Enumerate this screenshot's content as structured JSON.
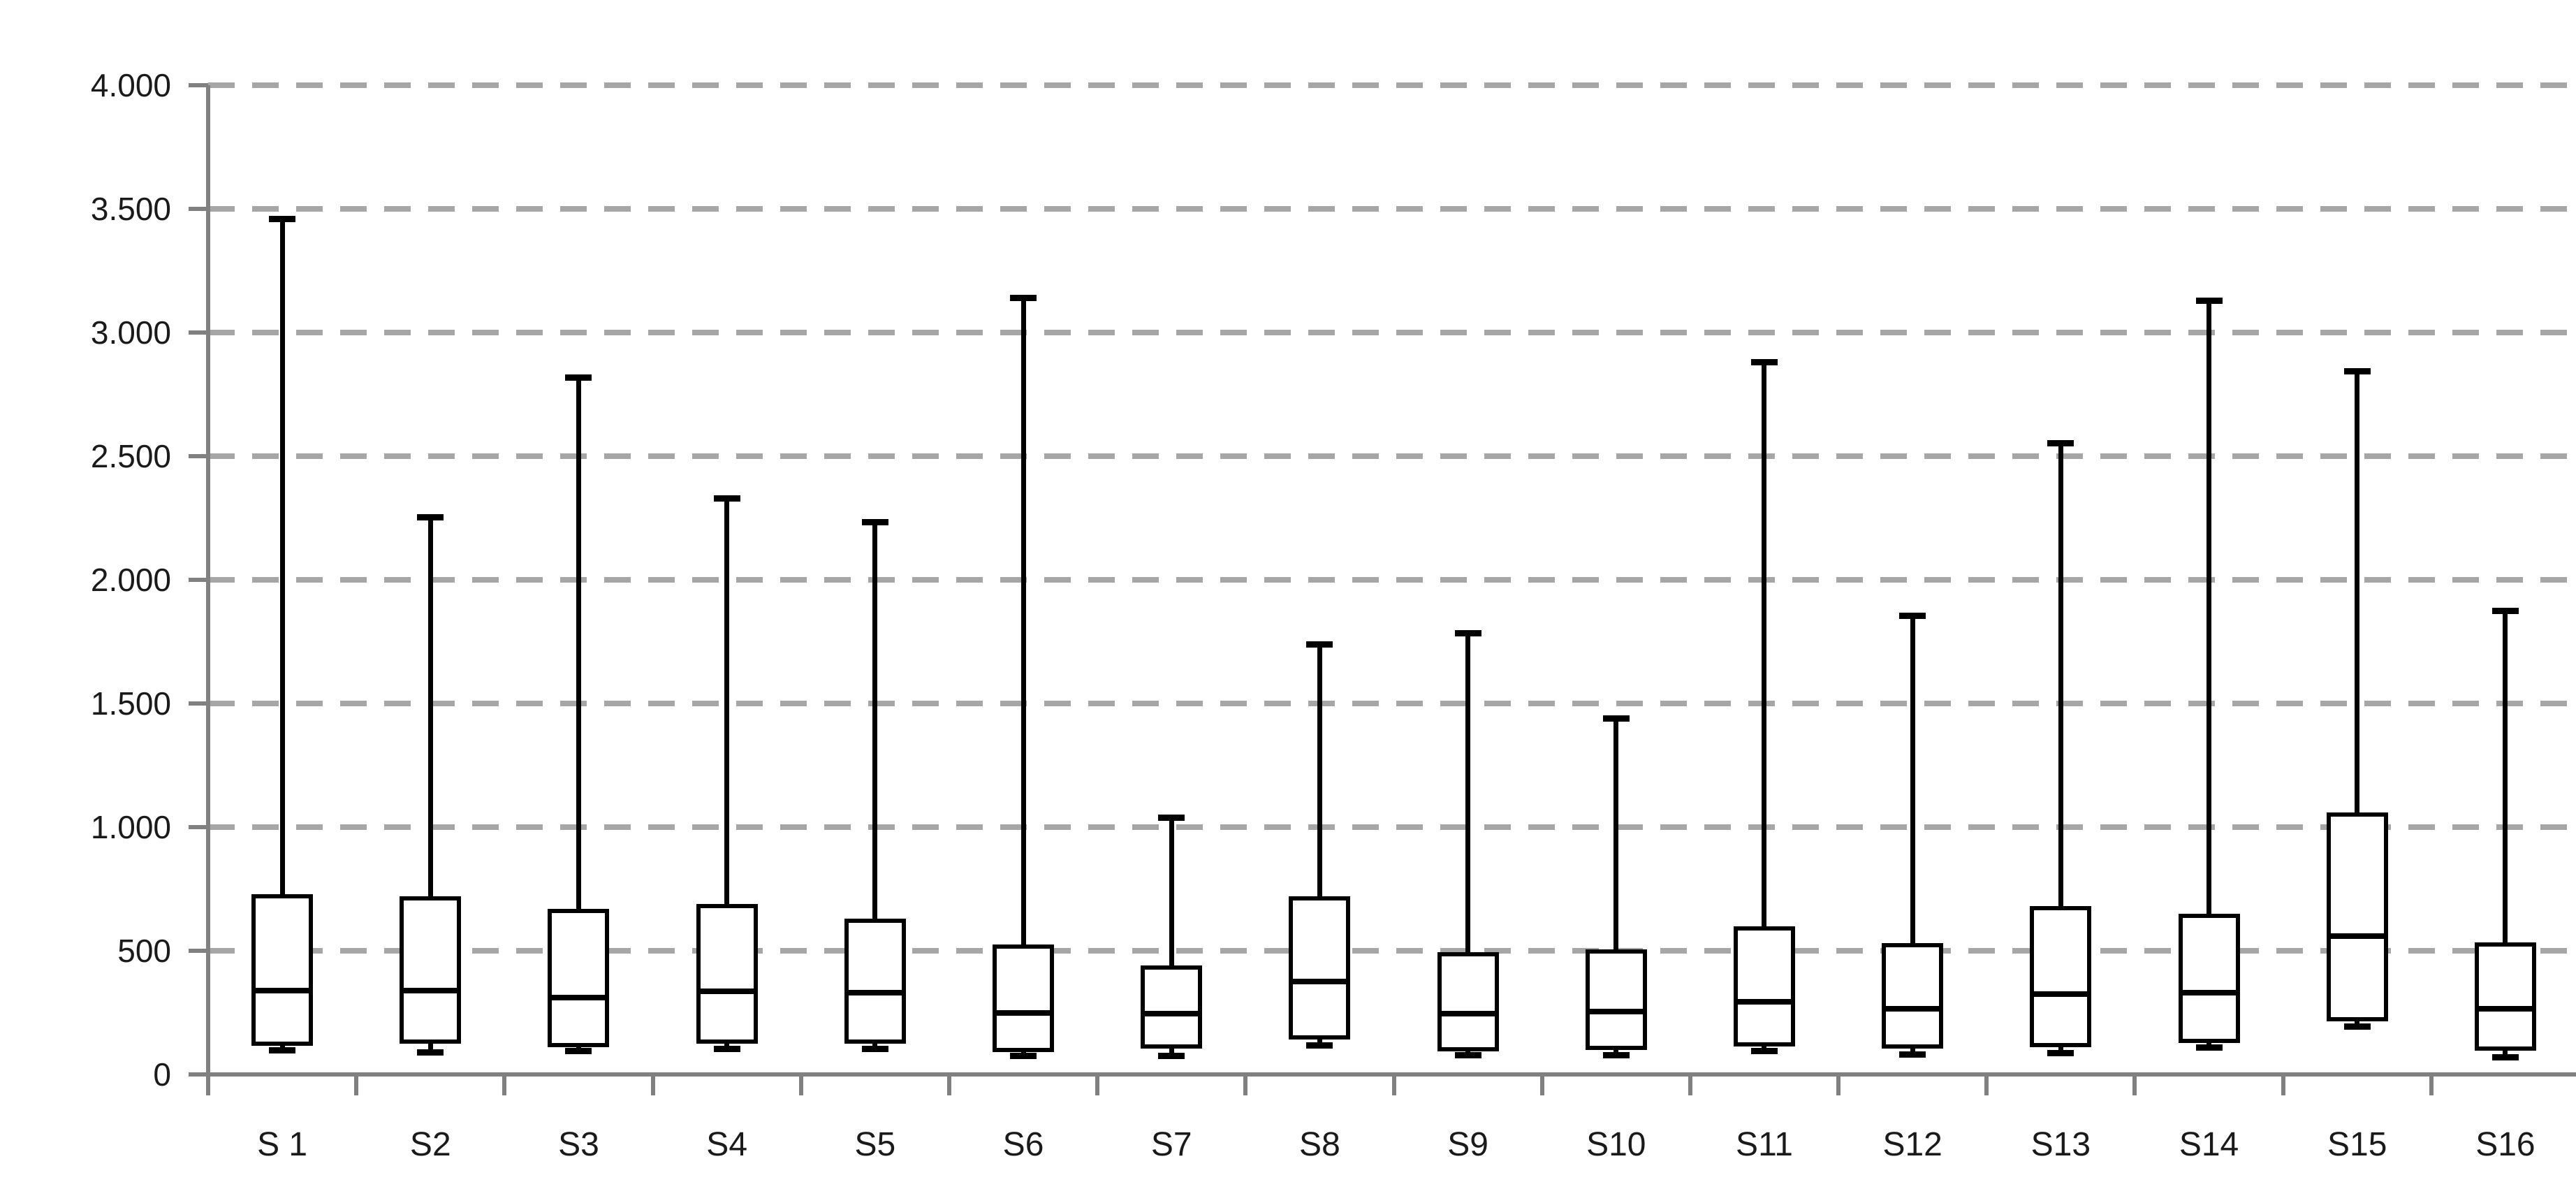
{
  "chart_data": {
    "type": "boxplot",
    "title": "",
    "xlabel": "",
    "ylabel": "",
    "categories": [
      "S 1",
      "S2",
      "S3",
      "S4",
      "S5",
      "S6",
      "S7",
      "S8",
      "S9",
      "S10",
      "S11",
      "S12",
      "S13",
      "S14",
      "S15",
      "S16"
    ],
    "y_axis": {
      "min": 0,
      "max": 4000,
      "step": 500,
      "tick_labels": [
        "0",
        "500",
        "1.000",
        "1.500",
        "2.000",
        "2.500",
        "3.000",
        "3.500",
        "4.000"
      ]
    },
    "grid": {
      "horizontal": "dashed",
      "vertical": "none"
    },
    "legend": "none",
    "series": [
      {
        "label": "S 1",
        "whisker_low": 100,
        "q1": 115,
        "median": 340,
        "q3": 730,
        "whisker_high": 3460
      },
      {
        "label": "S2",
        "whisker_low": 90,
        "q1": 125,
        "median": 340,
        "q3": 720,
        "whisker_high": 2255
      },
      {
        "label": "S3",
        "whisker_low": 95,
        "q1": 110,
        "median": 310,
        "q3": 670,
        "whisker_high": 2820
      },
      {
        "label": "S4",
        "whisker_low": 105,
        "q1": 125,
        "median": 335,
        "q3": 690,
        "whisker_high": 2330
      },
      {
        "label": "S5",
        "whisker_low": 105,
        "q1": 125,
        "median": 330,
        "q3": 630,
        "whisker_high": 2235
      },
      {
        "label": "S6",
        "whisker_low": 75,
        "q1": 90,
        "median": 250,
        "q3": 525,
        "whisker_high": 3140
      },
      {
        "label": "S7",
        "whisker_low": 75,
        "q1": 105,
        "median": 245,
        "q3": 440,
        "whisker_high": 1040
      },
      {
        "label": "S8",
        "whisker_low": 120,
        "q1": 140,
        "median": 375,
        "q3": 720,
        "whisker_high": 1740
      },
      {
        "label": "S9",
        "whisker_low": 78,
        "q1": 92,
        "median": 245,
        "q3": 495,
        "whisker_high": 1785
      },
      {
        "label": "S10",
        "whisker_low": 80,
        "q1": 100,
        "median": 255,
        "q3": 505,
        "whisker_high": 1440
      },
      {
        "label": "S11",
        "whisker_low": 95,
        "q1": 112,
        "median": 295,
        "q3": 600,
        "whisker_high": 2880
      },
      {
        "label": "S12",
        "whisker_low": 82,
        "q1": 105,
        "median": 265,
        "q3": 530,
        "whisker_high": 1855
      },
      {
        "label": "S13",
        "whisker_low": 88,
        "q1": 110,
        "median": 325,
        "q3": 680,
        "whisker_high": 2555
      },
      {
        "label": "S14",
        "whisker_low": 110,
        "q1": 128,
        "median": 330,
        "q3": 650,
        "whisker_high": 3130
      },
      {
        "label": "S15",
        "whisker_low": 195,
        "q1": 215,
        "median": 560,
        "q3": 1060,
        "whisker_high": 2845
      },
      {
        "label": "S16",
        "whisker_low": 72,
        "q1": 95,
        "median": 265,
        "q3": 535,
        "whisker_high": 1875
      }
    ],
    "colors": {
      "background": "#ffffff",
      "box_stroke": "#000000",
      "box_fill": "#ffffff",
      "gridline": "#a6a6a6",
      "axis": "#808080",
      "label_text": "#1a1a1a"
    }
  }
}
